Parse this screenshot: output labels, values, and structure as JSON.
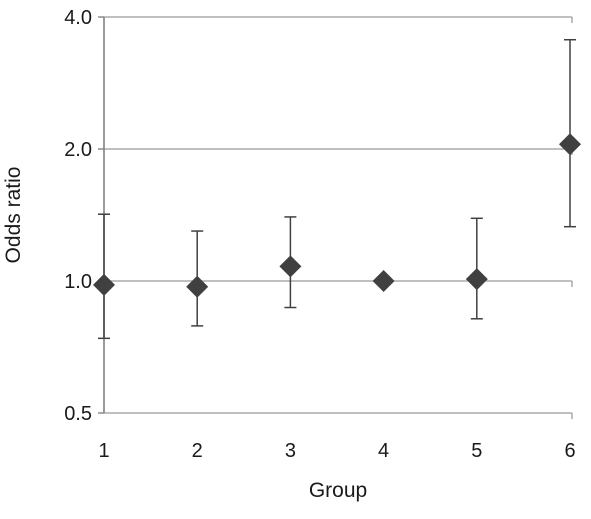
{
  "chart_data": {
    "type": "scatter",
    "xlabel": "Group",
    "ylabel": "Odds ratio",
    "y_scale": "log2",
    "ylim": [
      0.5,
      4.0
    ],
    "y_ticks": [
      0.5,
      1.0,
      2.0,
      4.0
    ],
    "y_tick_labels": [
      "0.5",
      "1.0",
      "2.0",
      "4.0"
    ],
    "grid": true,
    "categories": [
      "1",
      "2",
      "3",
      "4",
      "5",
      "6"
    ],
    "points": [
      {
        "x": "1",
        "y": 0.98,
        "lower": 0.74,
        "upper": 1.42
      },
      {
        "x": "2",
        "y": 0.97,
        "lower": 0.79,
        "upper": 1.3
      },
      {
        "x": "3",
        "y": 1.08,
        "lower": 0.87,
        "upper": 1.4
      },
      {
        "x": "4",
        "y": 1.0,
        "lower": 1.0,
        "upper": 1.0
      },
      {
        "x": "5",
        "y": 1.01,
        "lower": 0.82,
        "upper": 1.39
      },
      {
        "x": "6",
        "y": 2.05,
        "lower": 1.33,
        "upper": 3.55
      }
    ],
    "marker": "diamond",
    "marker_color": "#404040",
    "error_bar_color": "#404040",
    "grid_color": "#9a9a9a",
    "axis_color": "#7a7a7a"
  }
}
